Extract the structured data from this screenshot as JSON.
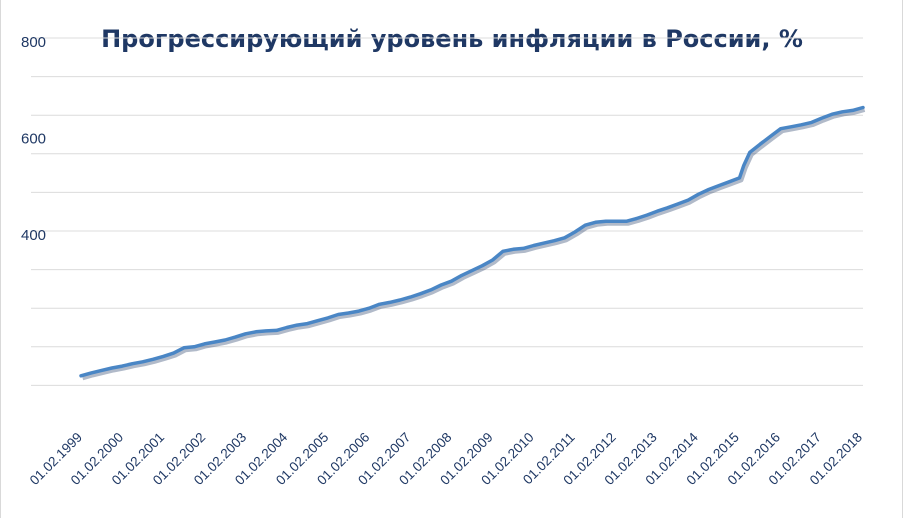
{
  "chart_data": {
    "type": "line",
    "title": "Прогрессирующий уровень инфляции в России, %",
    "xlabel": "",
    "ylabel": "",
    "ylim": [
      0,
      800
    ],
    "yticks_labeled": [
      400,
      600,
      800
    ],
    "grid_step": 80,
    "grid": true,
    "legend": "none",
    "x_tick_labels": [
      "01.02.1999",
      "01.02.2000",
      "01.02.2001",
      "01.02.2002",
      "01.02.2003",
      "01.02.2004",
      "01.02.2005",
      "01.02.2006",
      "01.02.2007",
      "01.02.2008",
      "01.02.2009",
      "01.02.2010",
      "01.02.2011",
      "01.02.2012",
      "01.02.2013",
      "01.02.2014",
      "01.02.2015",
      "01.02.2016",
      "01.02.2017",
      "01.02.2018"
    ],
    "line_color": "#4a86c5",
    "series": [
      {
        "x": [
          1999.0,
          1999.25,
          1999.5,
          1999.75,
          2000.0,
          2000.25,
          2000.5,
          2000.75,
          2001.0,
          2001.25,
          2001.5,
          2001.75,
          2002.0,
          2002.25,
          2002.5,
          2002.75,
          2003.0,
          2003.25,
          2003.5,
          2003.75,
          2004.0,
          2004.25,
          2004.5,
          2004.75,
          2005.0,
          2005.25,
          2005.5,
          2005.75,
          2006.0,
          2006.25,
          2006.5,
          2006.75,
          2007.0,
          2007.25,
          2007.5,
          2007.75,
          2008.0,
          2008.25,
          2008.5,
          2008.75,
          2009.0,
          2009.25,
          2009.5,
          2009.75,
          2010.0,
          2010.25,
          2010.5,
          2010.75,
          2011.0,
          2011.25,
          2011.5,
          2011.75,
          2012.0,
          2012.25,
          2012.5,
          2012.75,
          2013.0,
          2013.25,
          2013.5,
          2013.75,
          2014.0,
          2014.25,
          2014.5,
          2014.75,
          2015.0,
          2015.1,
          2015.25,
          2015.5,
          2015.75,
          2016.0,
          2016.25,
          2016.5,
          2016.75,
          2017.0,
          2017.25,
          2017.5,
          2017.75,
          2018.0
        ],
        "values": [
          100,
          106,
          111,
          116,
          120,
          125,
          129,
          134,
          140,
          147,
          158,
          160,
          166,
          170,
          174,
          180,
          187,
          191,
          193,
          194,
          200,
          205,
          208,
          214,
          220,
          227,
          230,
          234,
          240,
          248,
          252,
          257,
          263,
          270,
          278,
          288,
          296,
          308,
          318,
          328,
          340,
          358,
          362,
          364,
          370,
          375,
          380,
          386,
          398,
          412,
          418,
          420,
          420,
          420,
          426,
          433,
          441,
          448,
          456,
          464,
          476,
          486,
          494,
          502,
          510,
          535,
          563,
          580,
          596,
          612,
          616,
          620,
          625,
          634,
          642,
          647,
          650,
          656
        ]
      }
    ]
  }
}
